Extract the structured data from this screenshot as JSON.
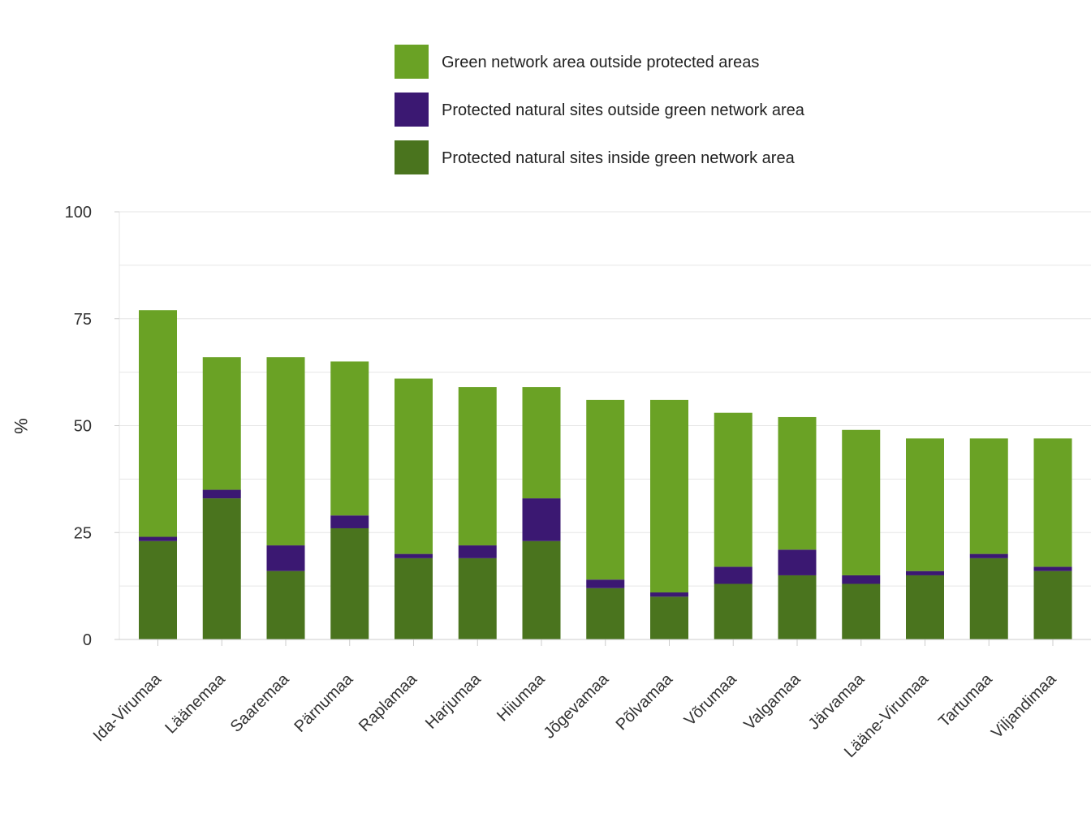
{
  "chart_data": {
    "type": "bar",
    "stacked": true,
    "ylabel": "%",
    "ylim": [
      0,
      100
    ],
    "yticks": [
      0,
      25,
      50,
      75,
      100
    ],
    "grid": true,
    "legend_position": "top",
    "categories": [
      "Ida-Virumaa",
      "Läänemaa",
      "Saaremaa",
      "Pärnumaa",
      "Raplamaa",
      "Harjumaa",
      "Hiiumaa",
      "Jõgevamaa",
      "Põlvamaa",
      "Võrumaa",
      "Valgamaa",
      "Järvamaa",
      "Lääne-Virumaa",
      "Tartumaa",
      "Viljandimaa"
    ],
    "series": [
      {
        "name": "Protected natural sites inside green network area",
        "color": "#4a741e",
        "values": [
          23,
          33,
          16,
          26,
          19,
          19,
          23,
          12,
          10,
          13,
          15,
          13,
          15,
          19,
          16
        ]
      },
      {
        "name": "Protected natural sites outside green network area",
        "color": "#3b1872",
        "values": [
          1,
          2,
          6,
          3,
          1,
          3,
          10,
          2,
          1,
          4,
          6,
          2,
          1,
          1,
          1
        ]
      },
      {
        "name": "Green network area outside protected areas",
        "color": "#6aa225",
        "values": [
          53,
          31,
          44,
          36,
          41,
          37,
          26,
          42,
          45,
          36,
          31,
          34,
          31,
          27,
          30
        ]
      }
    ],
    "legend_order": [
      "Green network area outside protected areas",
      "Protected natural sites outside green network area",
      "Protected natural sites inside green network area"
    ]
  }
}
